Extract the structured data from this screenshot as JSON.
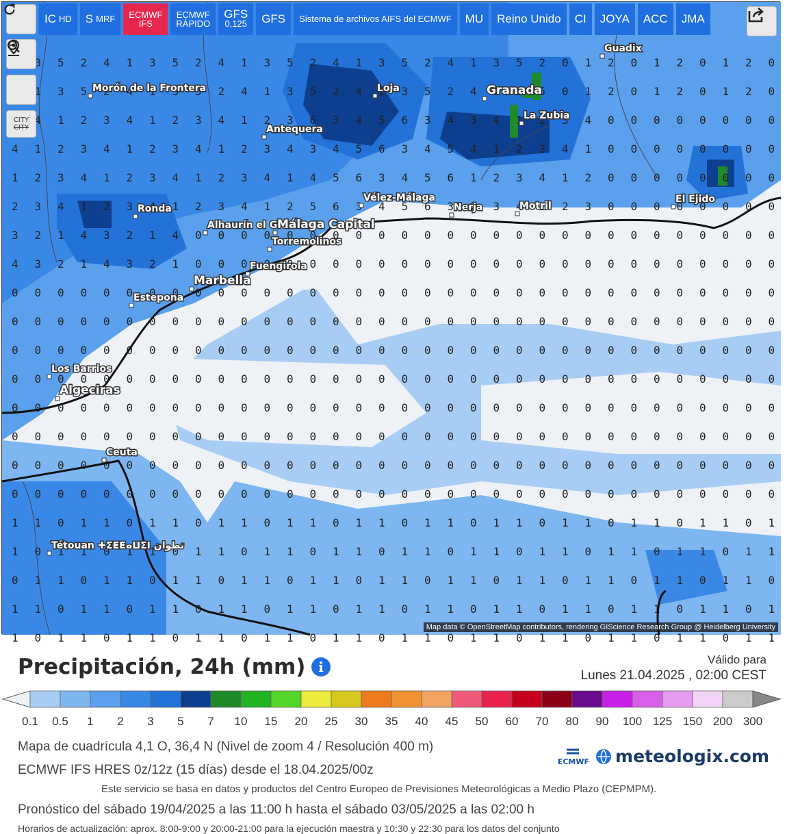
{
  "toolbar": {
    "refresh_icon": "refresh-icon",
    "models": [
      {
        "label": "IC",
        "sub": "HD",
        "active": false
      },
      {
        "label": "S",
        "sub": "MRF",
        "active": false
      },
      {
        "label": "ECMWF",
        "sub": "IFS",
        "active": true
      },
      {
        "label": "ECMWF",
        "sub": "RÁPIDO",
        "active": false
      },
      {
        "label": "GFS",
        "sub": "0,125",
        "active": false
      },
      {
        "label": "GFS",
        "sub": "",
        "active": false
      },
      {
        "label": "Sistema de archivos AIFS del ECMWF",
        "sub": "",
        "active": false
      },
      {
        "label": "MU",
        "sub": "",
        "active": false
      },
      {
        "label": "Reino Unido",
        "sub": "",
        "active": false
      },
      {
        "label": "CI",
        "sub": "",
        "active": false
      },
      {
        "label": "JOYA",
        "sub": "",
        "active": false
      },
      {
        "label": "ACC",
        "sub": "",
        "active": false
      },
      {
        "label": "JMA",
        "sub": "",
        "active": false
      }
    ],
    "share_icon": "share-icon"
  },
  "side_controls": {
    "location_icon": "location-pin-icon",
    "zoom_icon": "zoom-icon",
    "city_label": "CITY",
    "city_struck": "CITY"
  },
  "map": {
    "places": [
      {
        "name": "Guadix"
      },
      {
        "name": "Morón de la Frontera"
      },
      {
        "name": "Loja"
      },
      {
        "name": "Granada"
      },
      {
        "name": "La Zubia"
      },
      {
        "name": "Antequera"
      },
      {
        "name": "Ronda"
      },
      {
        "name": "Vélez-Málaga"
      },
      {
        "name": "Nerja"
      },
      {
        "name": "Motril"
      },
      {
        "name": "El Ejido"
      },
      {
        "name": "Alhaurín el Grande"
      },
      {
        "name": "Málaga Capital"
      },
      {
        "name": "Torremolinos"
      },
      {
        "name": "Fuengirola"
      },
      {
        "name": "Marbella"
      },
      {
        "name": "Estepona"
      },
      {
        "name": "Los Barrios"
      },
      {
        "name": "Algeciras"
      },
      {
        "name": "Ceuta"
      },
      {
        "name": "Tétouan ⵜⵉⵟⵟⴰⵡⵉⵏ تطوان"
      }
    ],
    "attribution": "Map data © OpenStreetMap contributors, rendering GIScience Research Group @ Heidelberg University"
  },
  "legend": {
    "title": "Precipitación, 24h (mm)",
    "info_icon": "info-icon",
    "valid_label": "Válido para",
    "valid_date": "Lunes 21.04.2025 , 02:00 CEST",
    "ticks": [
      "0.1",
      "0.5",
      "1",
      "2",
      "3",
      "5",
      "7",
      "10",
      "15",
      "20",
      "25",
      "30",
      "35",
      "40",
      "45",
      "50",
      "60",
      "70",
      "80",
      "90",
      "100",
      "125",
      "150",
      "200",
      "300"
    ],
    "colors": [
      "#a8cdf5",
      "#7db6f0",
      "#5aa0ec",
      "#3a88e6",
      "#2272d8",
      "#0e3f8f",
      "#1f8a2a",
      "#22b222",
      "#55d62a",
      "#ecec3c",
      "#d8c81e",
      "#ee7a1e",
      "#f39232",
      "#f3a362",
      "#f05a7a",
      "#e8214f",
      "#c4001c",
      "#8c0018",
      "#6a0a8c",
      "#c81ee6",
      "#d860e8",
      "#e69cf0",
      "#f2d4f6",
      "#cccccc"
    ],
    "grid_info": "Mapa de cuadrícula 4,1 O, 36,4 N (Nivel de zoom 4 / Resolución 400 m)",
    "model_info": "ECMWF IFS HRES 0z/12z (15 días) desde el 18.04.2025/00z",
    "credit": "Este servicio se basa en datos y productos del Centro Europeo de Previsiones Meteorológicas a Medio Plazo (CEPMPM).",
    "forecast_range": "Pronóstico del sábado 19/04/2025 a las 11:00 h hasta el sábado 03/05/2025 a las 02:00 h",
    "update_info": "Horarios de actualización: aprox. 8:00-9:00 y 20:00-21:00 para la ejecución maestra y 10:30 y 22:30 para los datos del conjunto",
    "ecmwf_logo": "ECMWF",
    "brand": "meteologix.com"
  }
}
